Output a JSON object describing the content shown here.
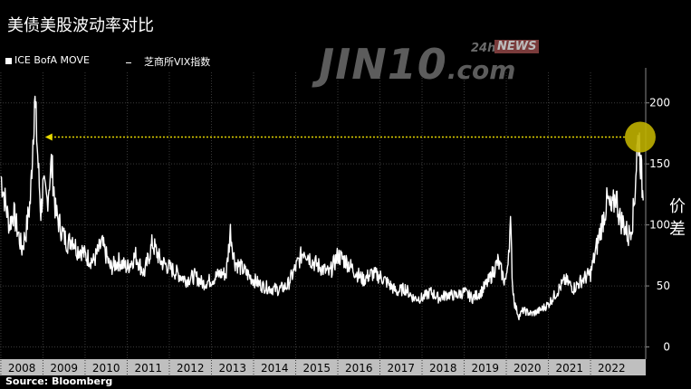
{
  "title": "美债美股波动率对比",
  "legend": {
    "series1": "ICE BofA MOVE",
    "series2": "芝商所VIX指数"
  },
  "side_label": [
    "价",
    "差"
  ],
  "source": "Source: Bloomberg",
  "watermark": {
    "main": "JIN10",
    "com": ".com",
    "prefix": "24h",
    "news": "NEWS"
  },
  "colors": {
    "background": "#000000",
    "line": "#ffffff",
    "highlight": "#d4c400",
    "panel": "#bfbfbf"
  },
  "chart_data": {
    "type": "line",
    "categories": [
      "2008",
      "2009",
      "2010",
      "2011",
      "2012",
      "2013",
      "2014",
      "2015",
      "2016",
      "2017",
      "2018",
      "2019",
      "2020",
      "2021",
      "2022"
    ],
    "yticks": [
      0,
      50,
      100,
      150,
      200
    ],
    "ylim": [
      -10,
      225
    ],
    "xlim": [
      2007.98,
      2023.31
    ],
    "series": [
      {
        "name": "ICE BofA MOVE",
        "x": [
          2008.0,
          2008.1,
          2008.2,
          2008.3,
          2008.4,
          2008.5,
          2008.6,
          2008.7,
          2008.75,
          2008.8,
          2008.85,
          2008.9,
          2008.95,
          2009.0,
          2009.1,
          2009.2,
          2009.25,
          2009.3,
          2009.4,
          2009.5,
          2009.6,
          2009.7,
          2009.8,
          2009.9,
          2010.0,
          2010.2,
          2010.4,
          2010.6,
          2010.8,
          2011.0,
          2011.2,
          2011.4,
          2011.6,
          2011.8,
          2012.0,
          2012.2,
          2012.4,
          2012.6,
          2012.8,
          2013.0,
          2013.2,
          2013.35,
          2013.45,
          2013.55,
          2013.7,
          2013.9,
          2014.0,
          2014.2,
          2014.4,
          2014.6,
          2014.8,
          2015.0,
          2015.2,
          2015.4,
          2015.6,
          2015.8,
          2016.0,
          2016.2,
          2016.4,
          2016.6,
          2016.8,
          2017.0,
          2017.2,
          2017.4,
          2017.6,
          2017.8,
          2018.0,
          2018.2,
          2018.4,
          2018.6,
          2018.8,
          2019.0,
          2019.2,
          2019.4,
          2019.6,
          2019.8,
          2019.95,
          2020.0,
          2020.1,
          2020.15,
          2020.2,
          2020.3,
          2020.4,
          2020.6,
          2020.8,
          2021.0,
          2021.2,
          2021.4,
          2021.6,
          2021.8,
          2022.0,
          2022.1,
          2022.2,
          2022.3,
          2022.4,
          2022.5,
          2022.6,
          2022.7,
          2022.8,
          2022.9,
          2023.0,
          2023.05,
          2023.1,
          2023.15,
          2023.2,
          2023.25
        ],
        "values": [
          140,
          120,
          100,
          110,
          95,
          80,
          95,
          120,
          160,
          205,
          175,
          140,
          110,
          130,
          120,
          150,
          135,
          110,
          100,
          90,
          85,
          90,
          80,
          80,
          75,
          70,
          85,
          65,
          70,
          65,
          75,
          60,
          85,
          70,
          65,
          60,
          55,
          58,
          52,
          55,
          60,
          60,
          95,
          70,
          65,
          58,
          55,
          50,
          48,
          47,
          50,
          65,
          80,
          70,
          65,
          60,
          75,
          70,
          62,
          55,
          60,
          58,
          52,
          45,
          48,
          40,
          40,
          45,
          40,
          43,
          42,
          45,
          40,
          45,
          55,
          70,
          55,
          55,
          100,
          50,
          35,
          25,
          30,
          27,
          30,
          35,
          45,
          55,
          48,
          55,
          60,
          75,
          90,
          105,
          120,
          110,
          125,
          105,
          100,
          90,
          105,
          125,
          160,
          175,
          145,
          120
        ]
      },
      {
        "name": "芝商所VIX指数",
        "x": [
          2023.18,
          2023.2
        ],
        "values": [
          172,
          172
        ]
      }
    ],
    "annotation": {
      "type": "arrow",
      "from_x": 2023.18,
      "to_x": 2009.05,
      "y": 172
    }
  }
}
